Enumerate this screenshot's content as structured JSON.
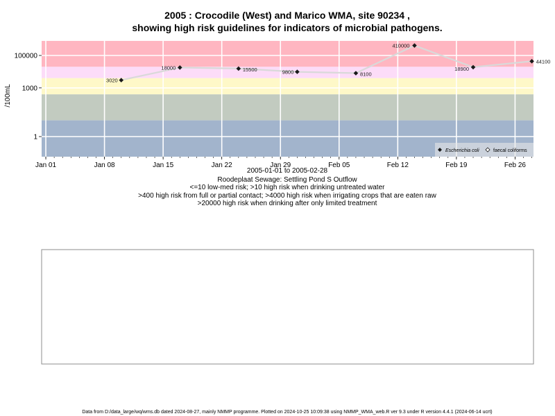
{
  "page": {
    "title_line1": "2005 : Crocodile (West) and Marico WMA, site 90234 ,",
    "title_line2": "showing high risk guidelines for indicators of microbial pathogens.",
    "date_range": "2005-01-01 to 2005-02-28",
    "site_desc": "Roodeplaat Sewage: Settling Pond S Outflow",
    "guideline_1": "<=10 low-med risk; >10 high risk when drinking untreated water",
    "guideline_2": ">400 high risk from full or partial contact; >4000 high risk when irrigating crops that are eaten raw",
    "guideline_3": ">20000 high risk when drinking after only limited treatment",
    "footer": "Data from D:/data_large/wq/wms.db dated 2024-08-27, mainly NMMP programme. Plotted on 2024-10-25 10:09:38 using NMMP_WMA_web.R ver 9.3 under R version 4.4.1 (2024-06-14 ucrt)"
  },
  "colors": {
    "band_top": "#ffb6c1",
    "band_mid": "#fcdcf8",
    "band_low": "#fef8c8",
    "band_green": "#c2cbc0",
    "band_blue": "#a2b4cc",
    "grid": "#ffffff",
    "line": "#d9d9d9",
    "marker": "#1a1a1a"
  },
  "chart_data": {
    "type": "line",
    "title": "2005 : Crocodile (West) and Marico WMA, site 90234 , showing high risk guidelines for indicators of microbial pathogens.",
    "xlabel": "2005-01-01 to 2005-02-28",
    "ylabel": "/100mL",
    "y_scale": "log",
    "x_tick_labels": [
      "Jan 01",
      "Jan 08",
      "Jan 15",
      "Jan 22",
      "Jan 29",
      "Feb 05",
      "Feb 12",
      "Feb 19",
      "Feb 26"
    ],
    "x_tick_dates": [
      "2005-01-01",
      "2005-01-08",
      "2005-01-15",
      "2005-01-22",
      "2005-01-29",
      "2005-02-05",
      "2005-02-12",
      "2005-02-19",
      "2005-02-26"
    ],
    "y_tick_labels": [
      "1",
      "1000",
      "100000"
    ],
    "y_tick_values": [
      1,
      1000,
      100000
    ],
    "guideline_bands": [
      10,
      400,
      4000,
      20000
    ],
    "legend": [
      {
        "label": "Escherichia coli",
        "symbol": "filled-diamond"
      },
      {
        "label": "faecal coliforms",
        "symbol": "open-diamond"
      }
    ],
    "legend_position": "bottom-right",
    "grid": true,
    "series": [
      {
        "name": "Escherichia coli",
        "points": [
          {
            "x": "2005-01-10",
            "y": 3020,
            "label": "3020"
          },
          {
            "x": "2005-01-17",
            "y": 18000,
            "label": "18000"
          },
          {
            "x": "2005-01-24",
            "y": 15500,
            "label": "15500"
          },
          {
            "x": "2005-01-31",
            "y": 9800,
            "label": "9800"
          },
          {
            "x": "2005-02-07",
            "y": 8100,
            "label": "8100"
          },
          {
            "x": "2005-02-14",
            "y": 410000,
            "label": "410000"
          },
          {
            "x": "2005-02-21",
            "y": 18900,
            "label": "18900"
          },
          {
            "x": "2005-02-28",
            "y": 44100,
            "label": "44100"
          }
        ]
      }
    ]
  }
}
